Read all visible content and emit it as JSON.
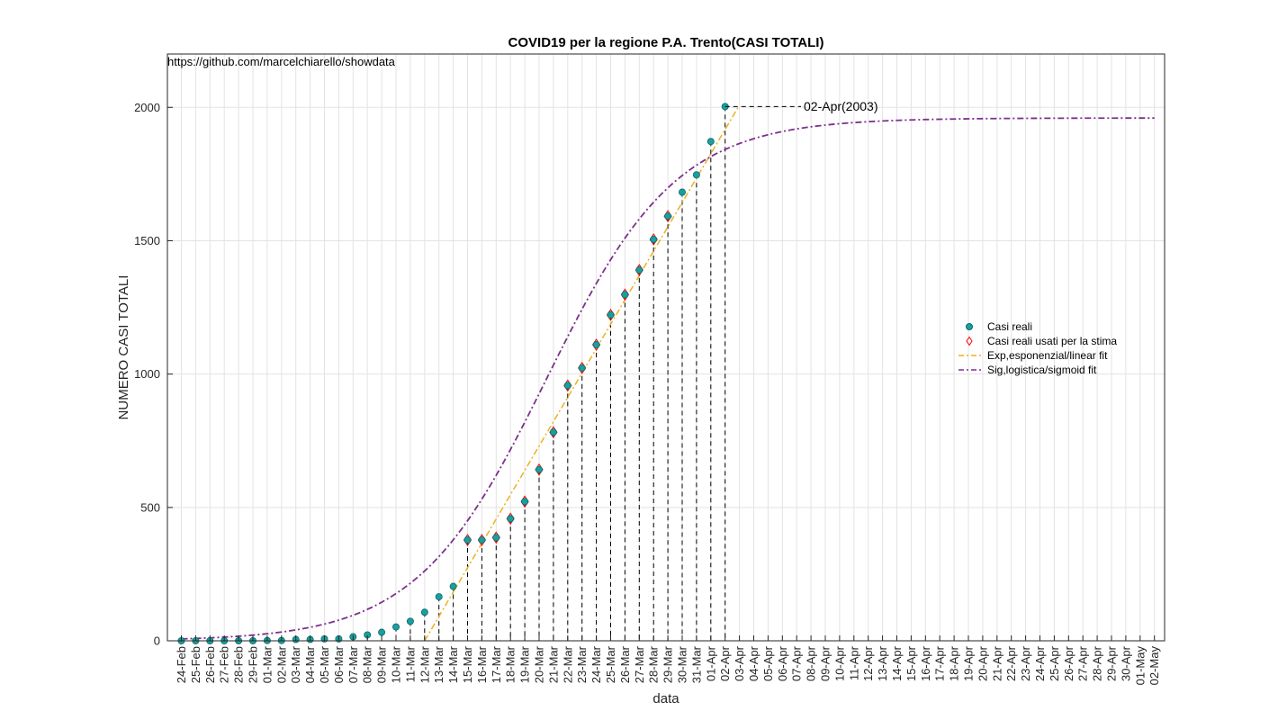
{
  "chart_data": {
    "type": "line",
    "title": "COVID19 per la regione P.A. Trento(CASI TOTALI)",
    "source_text": "https://github.com/marcelchiarello/showdata",
    "xlabel": "data",
    "ylabel": "NUMERO CASI TOTALI",
    "ylim": [
      0,
      2200
    ],
    "yticks": [
      0,
      500,
      1000,
      1500,
      2000
    ],
    "grid": true,
    "legend_position": "right",
    "x_ticks": [
      "24-Feb",
      "25-Feb",
      "26-Feb",
      "27-Feb",
      "28-Feb",
      "29-Feb",
      "01-Mar",
      "02-Mar",
      "03-Mar",
      "04-Mar",
      "05-Mar",
      "06-Mar",
      "07-Mar",
      "08-Mar",
      "09-Mar",
      "10-Mar",
      "11-Mar",
      "12-Mar",
      "13-Mar",
      "14-Mar",
      "15-Mar",
      "16-Mar",
      "17-Mar",
      "18-Mar",
      "19-Mar",
      "20-Mar",
      "21-Mar",
      "22-Mar",
      "23-Mar",
      "24-Mar",
      "25-Mar",
      "26-Mar",
      "27-Mar",
      "28-Mar",
      "29-Mar",
      "30-Mar",
      "31-Mar",
      "01-Apr",
      "02-Apr",
      "03-Apr",
      "04-Apr",
      "05-Apr",
      "06-Apr",
      "07-Apr",
      "08-Apr",
      "09-Apr",
      "10-Apr",
      "11-Apr",
      "12-Apr",
      "13-Apr",
      "14-Apr",
      "15-Apr",
      "16-Apr",
      "17-Apr",
      "18-Apr",
      "19-Apr",
      "20-Apr",
      "21-Apr",
      "22-Apr",
      "23-Apr",
      "24-Apr",
      "25-Apr",
      "26-Apr",
      "27-Apr",
      "28-Apr",
      "29-Apr",
      "30-Apr",
      "01-May",
      "02-May"
    ],
    "series": [
      {
        "name": "Casi reali",
        "marker": "circle",
        "color": "#1a9e9e",
        "values": [
          0,
          0,
          0,
          0,
          0,
          0,
          1,
          1,
          5,
          5,
          7,
          7,
          15,
          22,
          32,
          52,
          73,
          107,
          165,
          204,
          378,
          378,
          387,
          458,
          522,
          642,
          782,
          957,
          1023,
          1110,
          1222,
          1298,
          1390,
          1505,
          1592,
          1682,
          1747,
          1872,
          2003
        ]
      },
      {
        "name": "Casi reali usati per la stima",
        "marker": "diamond",
        "color": "#ff0000",
        "start_index": 20,
        "values": [
          378,
          378,
          387,
          458,
          522,
          642,
          782,
          957,
          1023,
          1110,
          1222,
          1298,
          1390,
          1505,
          1592
        ]
      },
      {
        "name": "Exp,esponenzial/linear fit",
        "line_style": "dash-dot",
        "color": "#edb120",
        "fit": "linear",
        "slope": 91.3,
        "x_at_zero": 17,
        "x_end": 38.9
      },
      {
        "name": "Sig,logistica/sigmoid fit",
        "line_style": "dash-dot",
        "color": "#7e2f8e",
        "fit": "logistic",
        "L": 1960,
        "k": 0.22,
        "x0": 25.5
      }
    ],
    "annotations": [
      {
        "text": "02-Apr(2003)",
        "x": "02-Apr",
        "y": 2003
      }
    ]
  }
}
